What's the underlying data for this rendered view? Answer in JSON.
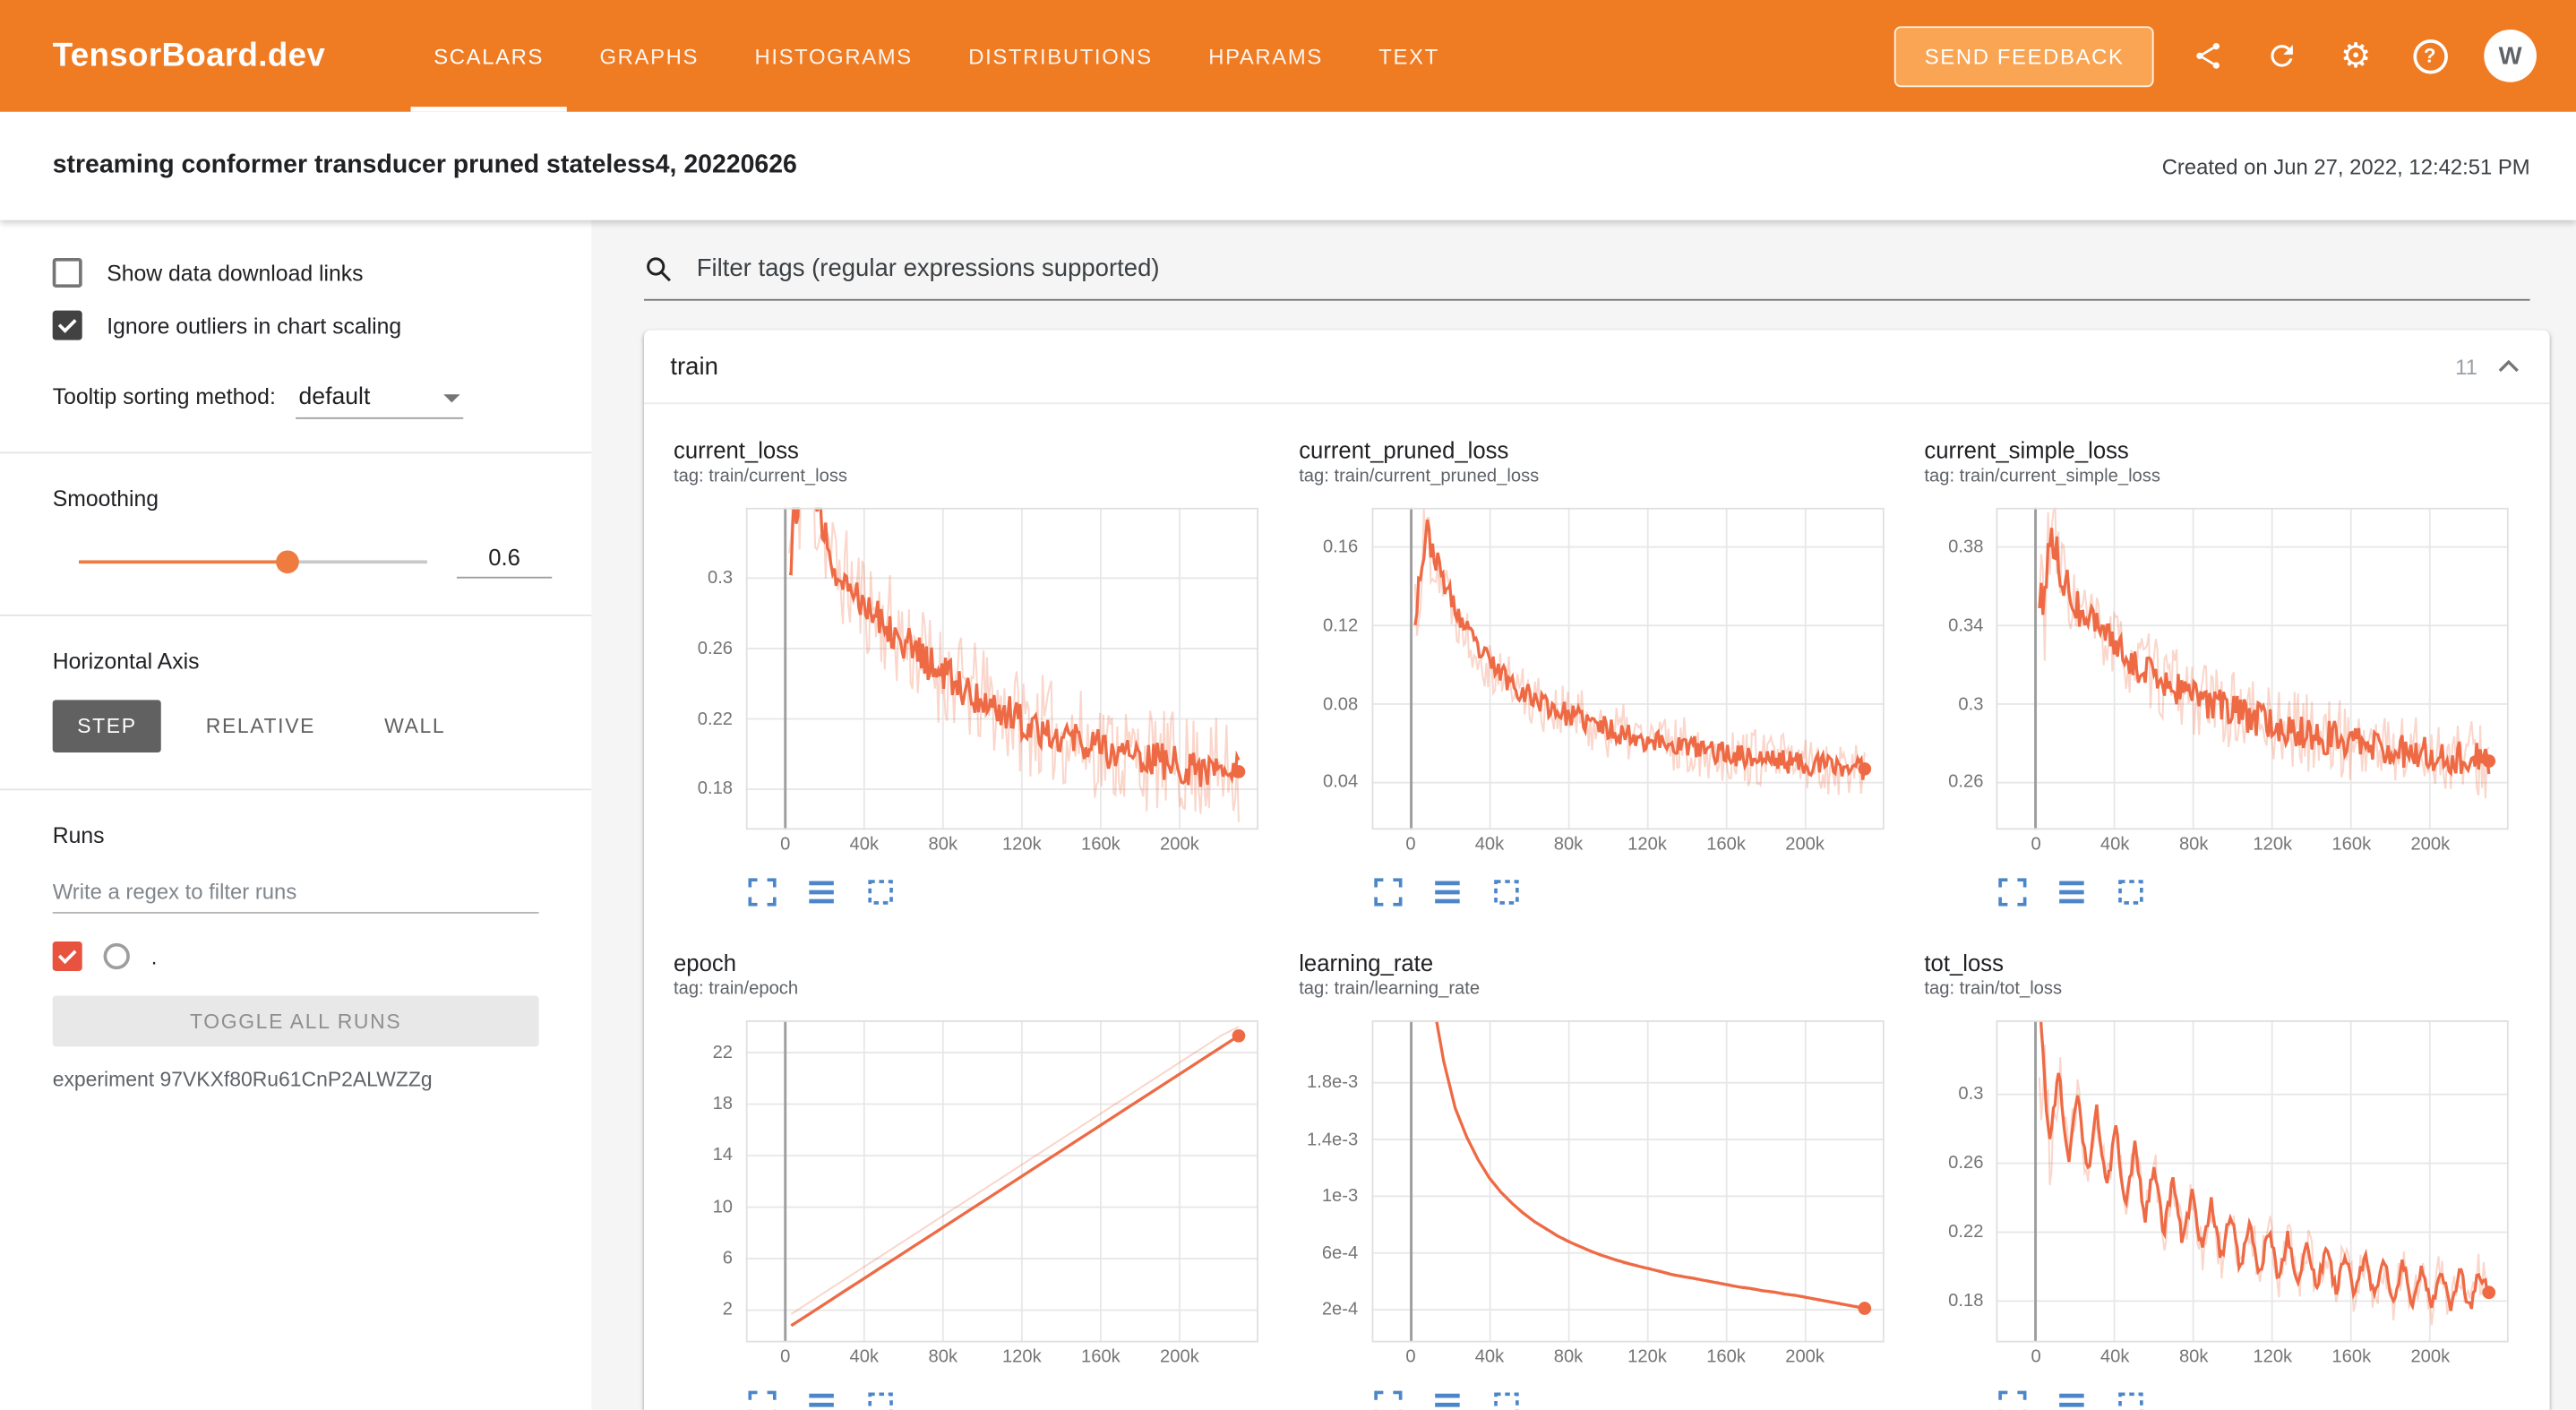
{
  "header": {
    "logo": "TensorBoard.dev",
    "nav": [
      {
        "label": "SCALARS",
        "active": true
      },
      {
        "label": "GRAPHS",
        "active": false
      },
      {
        "label": "HISTOGRAMS",
        "active": false
      },
      {
        "label": "DISTRIBUTIONS",
        "active": false
      },
      {
        "label": "HPARAMS",
        "active": false
      },
      {
        "label": "TEXT",
        "active": false
      }
    ],
    "feedback_label": "SEND FEEDBACK",
    "icons": [
      "share-icon",
      "refresh-icon",
      "settings-icon",
      "help-icon"
    ],
    "avatar_initial": "W",
    "colors": {
      "bar": "#ef7b23",
      "feedback_bg": "#f9a553"
    }
  },
  "titlebar": {
    "title": "streaming conformer transducer pruned stateless4, 20220626",
    "created": "Created on Jun 27, 2022, 12:42:51 PM"
  },
  "sidebar": {
    "show_download": {
      "label": "Show data download links",
      "checked": false
    },
    "ignore_outliers": {
      "label": "Ignore outliers in chart scaling",
      "checked": true
    },
    "tooltip_sorting": {
      "label": "Tooltip sorting method:",
      "value": "default"
    },
    "smoothing": {
      "label": "Smoothing",
      "value": "0.6",
      "percent": 60
    },
    "horizontal_axis": {
      "label": "Horizontal Axis",
      "options": [
        {
          "label": "STEP",
          "active": true
        },
        {
          "label": "RELATIVE",
          "active": false
        },
        {
          "label": "WALL",
          "active": false
        }
      ]
    },
    "runs": {
      "label": "Runs",
      "filter_placeholder": "Write a regex to filter runs",
      "run_name": ".",
      "run_checked": true,
      "toggle_label": "TOGGLE ALL RUNS",
      "experiment": "experiment 97VKXf80Ru61CnP2ALWZZg"
    }
  },
  "main": {
    "filter_placeholder": "Filter tags (regular expressions supported)",
    "group": {
      "name": "train",
      "count": "11"
    }
  },
  "chart_style": {
    "line": "#ee6a45",
    "raw_opacity": 0.28,
    "grid": "#e7e7e7",
    "zero_line": "#9e9e9e",
    "border": "#dfdfdf",
    "icon": "#4c86c8",
    "tick": "#757575"
  },
  "chart_toolbar": [
    "fullscreen-icon",
    "view-data-icon",
    "fit-domain-icon"
  ],
  "chart_data": [
    {
      "type": "line",
      "title": "current_loss",
      "tag": "tag: train/current_loss",
      "x_domain": [
        -20000,
        240000
      ],
      "x_ticks": {
        "values": [
          0,
          40000,
          80000,
          120000,
          160000,
          200000
        ],
        "labels": [
          "0",
          "40k",
          "80k",
          "120k",
          "160k",
          "200k"
        ]
      },
      "y_domain": [
        0.157,
        0.34
      ],
      "y_ticks": {
        "values": [
          0.18,
          0.22,
          0.26,
          0.3
        ],
        "labels": [
          "0.18",
          "0.22",
          "0.26",
          "0.3"
        ]
      },
      "x_start": 2000,
      "x_end": 230000,
      "values": [
        0.312,
        0.362,
        0.345,
        0.326,
        0.306,
        0.298,
        0.291,
        0.284,
        0.277,
        0.271,
        0.264,
        0.258,
        0.252,
        0.247,
        0.243,
        0.238,
        0.234,
        0.23,
        0.227,
        0.223,
        0.22,
        0.217,
        0.215,
        0.212,
        0.21,
        0.208,
        0.206,
        0.204,
        0.202,
        0.2,
        0.199,
        0.197,
        0.196,
        0.195,
        0.194,
        0.193,
        0.192,
        0.191,
        0.19,
        0.19
      ],
      "noise_raw": 0.03,
      "noise_smooth": 0.011,
      "head_boost": 3,
      "seed": 11,
      "end_dot": true
    },
    {
      "type": "line",
      "title": "current_pruned_loss",
      "tag": "tag: train/current_pruned_loss",
      "x_domain": [
        -20000,
        240000
      ],
      "x_ticks": {
        "values": [
          0,
          40000,
          80000,
          120000,
          160000,
          200000
        ],
        "labels": [
          "0",
          "40k",
          "80k",
          "120k",
          "160k",
          "200k"
        ]
      },
      "y_domain": [
        0.016,
        0.18
      ],
      "y_ticks": {
        "values": [
          0.04,
          0.08,
          0.12,
          0.16
        ],
        "labels": [
          "0.04",
          "0.08",
          "0.12",
          "0.16"
        ]
      },
      "x_start": 2000,
      "x_end": 230000,
      "values": [
        0.13,
        0.168,
        0.15,
        0.135,
        0.122,
        0.112,
        0.104,
        0.098,
        0.093,
        0.088,
        0.084,
        0.081,
        0.078,
        0.075,
        0.073,
        0.071,
        0.069,
        0.067,
        0.065,
        0.064,
        0.062,
        0.061,
        0.06,
        0.059,
        0.058,
        0.057,
        0.056,
        0.055,
        0.054,
        0.053,
        0.052,
        0.052,
        0.051,
        0.05,
        0.05,
        0.049,
        0.049,
        0.048,
        0.048,
        0.047
      ],
      "noise_raw": 0.015,
      "noise_smooth": 0.006,
      "head_boost": 3,
      "seed": 22,
      "end_dot": true
    },
    {
      "type": "line",
      "title": "current_simple_loss",
      "tag": "tag: train/current_simple_loss",
      "x_domain": [
        -20000,
        240000
      ],
      "x_ticks": {
        "values": [
          0,
          40000,
          80000,
          120000,
          160000,
          200000
        ],
        "labels": [
          "0",
          "40k",
          "80k",
          "120k",
          "160k",
          "200k"
        ]
      },
      "y_domain": [
        0.236,
        0.4
      ],
      "y_ticks": {
        "values": [
          0.26,
          0.3,
          0.34,
          0.38
        ],
        "labels": [
          "0.26",
          "0.3",
          "0.34",
          "0.38"
        ]
      },
      "x_start": 2000,
      "x_end": 230000,
      "values": [
        0.345,
        0.385,
        0.366,
        0.352,
        0.344,
        0.338,
        0.332,
        0.327,
        0.322,
        0.318,
        0.314,
        0.311,
        0.308,
        0.305,
        0.302,
        0.3,
        0.298,
        0.296,
        0.294,
        0.292,
        0.29,
        0.289,
        0.287,
        0.286,
        0.284,
        0.283,
        0.282,
        0.281,
        0.28,
        0.279,
        0.278,
        0.277,
        0.276,
        0.276,
        0.275,
        0.274,
        0.273,
        0.273,
        0.272,
        0.271
      ],
      "noise_raw": 0.02,
      "noise_smooth": 0.009,
      "head_boost": 3,
      "seed": 33,
      "end_dot": true
    },
    {
      "type": "line",
      "title": "epoch",
      "tag": "tag: train/epoch",
      "x_domain": [
        -20000,
        240000
      ],
      "x_ticks": {
        "values": [
          0,
          40000,
          80000,
          120000,
          160000,
          200000
        ],
        "labels": [
          "0",
          "40k",
          "80k",
          "120k",
          "160k",
          "200k"
        ]
      },
      "y_domain": [
        -0.5,
        24.5
      ],
      "y_ticks": {
        "values": [
          2,
          6,
          10,
          14,
          18,
          22
        ],
        "labels": [
          "2",
          "6",
          "10",
          "14",
          "18",
          "22"
        ]
      },
      "x_start": 3000,
      "x_end": 230000,
      "values": [
        0.8,
        1.7,
        2.6,
        3.5,
        4.4,
        5.3,
        6.2,
        7.1,
        8.0,
        8.9,
        9.8,
        10.7,
        11.6,
        12.5,
        13.4,
        14.3,
        15.2,
        16.1,
        17.0,
        17.9,
        18.8,
        19.7,
        20.6,
        21.5,
        22.4,
        23.3
      ],
      "raw_values": [
        1.7,
        2.6,
        3.5,
        4.4,
        5.3,
        6.2,
        7.1,
        8.0,
        8.9,
        9.8,
        10.7,
        11.6,
        12.5,
        13.4,
        14.3,
        15.2,
        16.1,
        17.0,
        17.9,
        18.8,
        19.7,
        20.6,
        21.5,
        22.4,
        23.3,
        24.0
      ],
      "noise_raw": 0,
      "noise_smooth": 0,
      "head_boost": 1,
      "seed": 44,
      "end_dot": true
    },
    {
      "type": "line",
      "title": "learning_rate",
      "tag": "tag: train/learning_rate",
      "x_domain": [
        -20000,
        240000
      ],
      "x_ticks": {
        "values": [
          0,
          40000,
          80000,
          120000,
          160000,
          200000
        ],
        "labels": [
          "0",
          "40k",
          "80k",
          "120k",
          "160k",
          "200k"
        ]
      },
      "y_domain": [
        -3e-05,
        0.00224
      ],
      "y_ticks": {
        "values": [
          0.0002,
          0.0006,
          0.001,
          0.0014,
          0.0018
        ],
        "labels": [
          "2e-4",
          "6e-4",
          "1e-3",
          "1.4e-3",
          "1.8e-3"
        ]
      },
      "x_start": 5000,
      "x_end": 230000,
      "values": [
        0.0032,
        0.0024,
        0.00195,
        0.00162,
        0.00142,
        0.00126,
        0.00113,
        0.00103,
        0.00095,
        0.00088,
        0.00082,
        0.00077,
        0.00072,
        0.00068,
        0.000645,
        0.00061,
        0.00058,
        0.000555,
        0.00053,
        0.00051,
        0.00049,
        0.00047,
        0.00045,
        0.000435,
        0.00042,
        0.000405,
        0.00039,
        0.000375,
        0.00036,
        0.00035,
        0.000335,
        0.000325,
        0.00031,
        0.0003,
        0.000285,
        0.00027,
        0.000255,
        0.00024,
        0.000225,
        0.00021
      ],
      "noise_raw": 1e-05,
      "noise_smooth": 0,
      "head_boost": 1,
      "seed": 55,
      "end_dot": true
    },
    {
      "type": "line",
      "title": "tot_loss",
      "tag": "tag: train/tot_loss",
      "x_domain": [
        -20000,
        240000
      ],
      "x_ticks": {
        "values": [
          0,
          40000,
          80000,
          120000,
          160000,
          200000
        ],
        "labels": [
          "0",
          "40k",
          "80k",
          "120k",
          "160k",
          "200k"
        ]
      },
      "y_domain": [
        0.156,
        0.343
      ],
      "y_ticks": {
        "values": [
          0.18,
          0.22,
          0.26,
          0.3
        ],
        "labels": [
          "0.18",
          "0.22",
          "0.26",
          "0.3"
        ]
      },
      "x_start": 2000,
      "x_end": 230000,
      "values": [
        0.356,
        0.27,
        0.314,
        0.261,
        0.303,
        0.252,
        0.292,
        0.243,
        0.281,
        0.234,
        0.27,
        0.226,
        0.261,
        0.219,
        0.252,
        0.213,
        0.246,
        0.208,
        0.239,
        0.203,
        0.233,
        0.198,
        0.227,
        0.195,
        0.223,
        0.191,
        0.219,
        0.189,
        0.216,
        0.186,
        0.212,
        0.185,
        0.209,
        0.182,
        0.207,
        0.181,
        0.204,
        0.179,
        0.203,
        0.178,
        0.201,
        0.177,
        0.199,
        0.176,
        0.198,
        0.175,
        0.197,
        0.185
      ],
      "noise_raw": 0.013,
      "noise_smooth": 0.004,
      "head_boost": 5,
      "seed": 66,
      "end_dot": true
    }
  ]
}
